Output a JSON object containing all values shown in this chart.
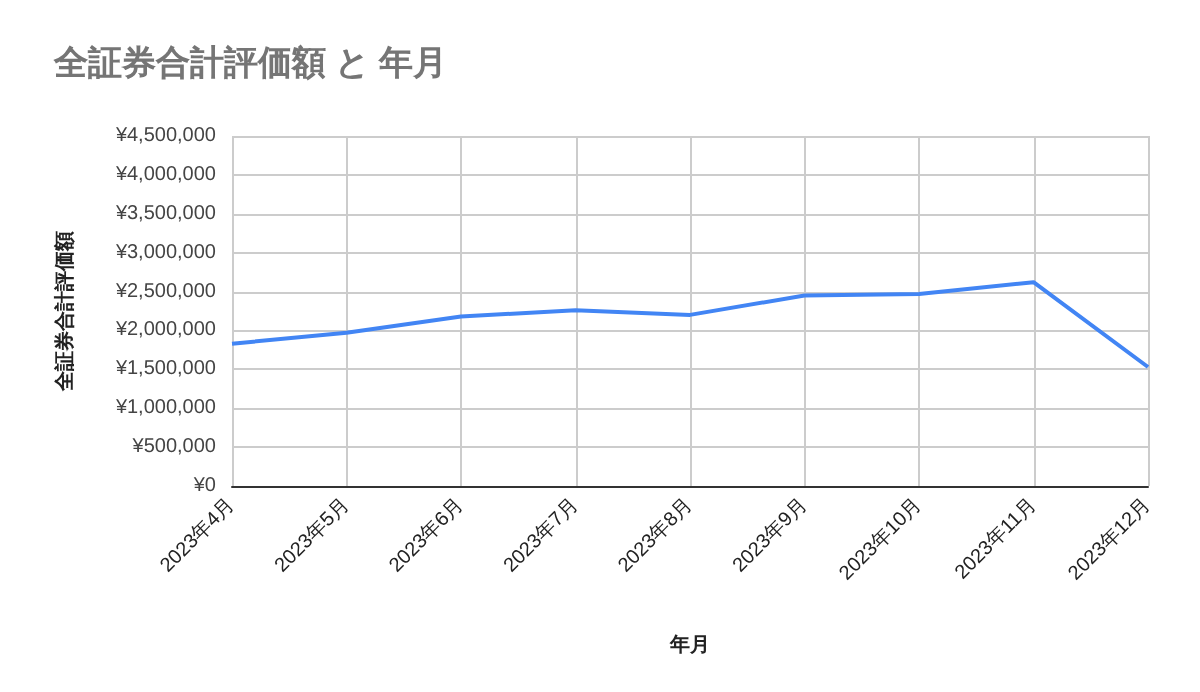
{
  "chart_data": {
    "type": "line",
    "title": "全証券合計評価額 と 年月",
    "xlabel": "年月",
    "ylabel": "全証券合計評価額",
    "categories": [
      "2023年4月",
      "2023年5月",
      "2023年6月",
      "2023年7月",
      "2023年8月",
      "2023年9月",
      "2023年10月",
      "2023年11月",
      "2023年12月"
    ],
    "series": [
      {
        "color": "#4285f4",
        "values": [
          1830000,
          1970000,
          2180000,
          2260000,
          2200000,
          2450000,
          2470000,
          2620000,
          1530000
        ]
      }
    ],
    "ylim": [
      0,
      4500000
    ],
    "yticks": [
      {
        "value": 0,
        "label": "¥0"
      },
      {
        "value": 500000,
        "label": "¥500,000"
      },
      {
        "value": 1000000,
        "label": "¥1,000,000"
      },
      {
        "value": 1500000,
        "label": "¥1,500,000"
      },
      {
        "value": 2000000,
        "label": "¥2,000,000"
      },
      {
        "value": 2500000,
        "label": "¥2,500,000"
      },
      {
        "value": 3000000,
        "label": "¥3,000,000"
      },
      {
        "value": 3500000,
        "label": "¥3,500,000"
      },
      {
        "value": 4000000,
        "label": "¥4,000,000"
      },
      {
        "value": 4500000,
        "label": "¥4,500,000"
      }
    ],
    "grid": true,
    "marker": "none",
    "line_style": "solid"
  }
}
